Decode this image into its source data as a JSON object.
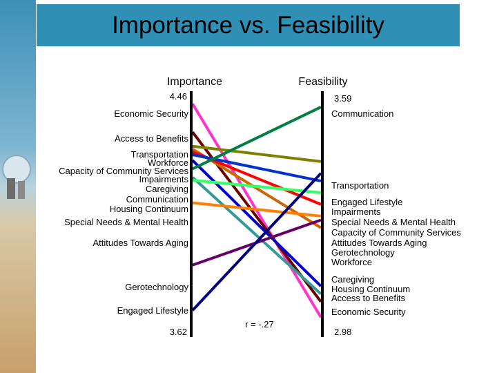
{
  "title": "Importance vs. Feasibility",
  "chart_data": {
    "type": "slope",
    "left_axis": {
      "label": "Importance",
      "max_label": "4.46",
      "min_label": "3.62",
      "max": 4.46,
      "min": 3.62
    },
    "right_axis": {
      "label": "Feasibility",
      "max_label": "3.59",
      "min_label": "2.98",
      "max": 3.59,
      "min": 2.98
    },
    "annotation": "r = -.27",
    "series": [
      {
        "name": "Economic Security",
        "importance": 4.43,
        "feasibility": 3.02,
        "color": "#ff33cc"
      },
      {
        "name": "Access to Benefits",
        "importance": 4.33,
        "feasibility": 3.06,
        "color": "#6b0000"
      },
      {
        "name": "Transportation",
        "importance": 4.28,
        "feasibility": 3.42,
        "color": "#808000"
      },
      {
        "name": "Workforce",
        "importance": 4.27,
        "feasibility": 3.25,
        "color": "#cc6600"
      },
      {
        "name": "Capacity of Community Services",
        "importance": 4.26,
        "feasibility": 3.31,
        "color": "#ff0000"
      },
      {
        "name": "Impairments",
        "importance": 4.25,
        "feasibility": 3.37,
        "color": "#0033cc"
      },
      {
        "name": "Caregiving",
        "importance": 4.23,
        "feasibility": 3.1,
        "color": "#0000cc"
      },
      {
        "name": "Communication",
        "importance": 4.2,
        "feasibility": 3.56,
        "color": "#008040"
      },
      {
        "name": "Housing Continuum",
        "importance": 4.17,
        "feasibility": 3.08,
        "color": "#339999"
      },
      {
        "name": "Special Needs & Mental Health",
        "importance": 4.16,
        "feasibility": 3.34,
        "color": "#33ff66"
      },
      {
        "name": "Attitudes Towards Aging",
        "importance": 4.08,
        "feasibility": 3.28,
        "color": "#ff8000"
      },
      {
        "name": "Gerotechnology",
        "importance": 3.86,
        "feasibility": 3.27,
        "color": "#660066"
      },
      {
        "name": "Engaged Lifestyle",
        "importance": 3.7,
        "feasibility": 3.39,
        "color": "#000080"
      }
    ],
    "left_labels": [
      {
        "text": "Economic Security",
        "color": "#000000"
      },
      {
        "text": "Access to Benefits",
        "color": "#000000"
      },
      {
        "text": "Transportation",
        "color": "#000000"
      },
      {
        "text": "Workforce",
        "color": "#000000"
      },
      {
        "text": "Capacity of Community Services",
        "color": "#000000"
      },
      {
        "text": "Impairments",
        "color": "#000000"
      },
      {
        "text": "Caregiving",
        "color": "#000000"
      },
      {
        "text": "Communication",
        "color": "#000000"
      },
      {
        "text": "Housing Continuum",
        "color": "#000000"
      },
      {
        "text": "Special Needs & Mental Health",
        "color": "#000000"
      },
      {
        "text": "Attitudes Towards Aging",
        "color": "#000000"
      },
      {
        "text": "Gerotechnology",
        "color": "#000000"
      },
      {
        "text": "Engaged Lifestyle",
        "color": "#000000"
      }
    ],
    "right_labels": [
      {
        "text": "Communication",
        "color": "#000000"
      },
      {
        "text": "Transportation",
        "color": "#000000"
      },
      {
        "text": "Engaged Lifestyle",
        "color": "#000000"
      },
      {
        "text": "Impairments",
        "color": "#000000"
      },
      {
        "text": "Special Needs & Mental Health",
        "color": "#000000"
      },
      {
        "text": "Capacity of Community Services",
        "color": "#000000"
      },
      {
        "text": "Attitudes Towards Aging",
        "color": "#000000"
      },
      {
        "text": "Gerotechnology",
        "color": "#000000"
      },
      {
        "text": "Workforce",
        "color": "#000000"
      },
      {
        "text": "Caregiving",
        "color": "#000000"
      },
      {
        "text": "Housing Continuum",
        "color": "#000000"
      },
      {
        "text": "Access to Benefits",
        "color": "#000000"
      },
      {
        "text": "Economic Security",
        "color": "#000000"
      }
    ]
  }
}
